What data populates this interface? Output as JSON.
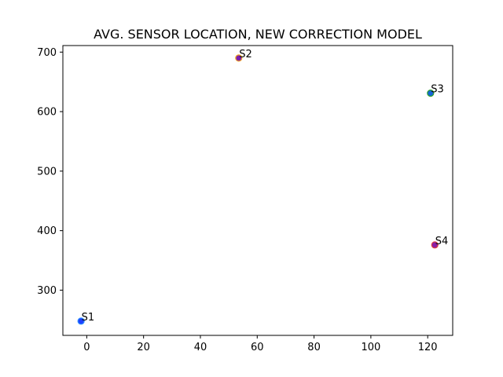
{
  "chart_data": {
    "type": "scatter",
    "title": "AVG. SENSOR LOCATION, NEW CORRECTION MODEL",
    "xlabel": "",
    "ylabel": "",
    "xlim": [
      -8.4,
      128.8
    ],
    "ylim": [
      224,
      711
    ],
    "xticks": [
      0,
      20,
      40,
      60,
      80,
      100,
      120
    ],
    "yticks": [
      300,
      400,
      500,
      600,
      700
    ],
    "grid": false,
    "points": [
      {
        "label": "S1",
        "x": -2,
        "y": 248,
        "fill": "#1f3fff",
        "edge": "#2a8cff"
      },
      {
        "label": "S2",
        "x": 53.5,
        "y": 690,
        "fill": "#7a1fb0",
        "edge": "#f0a020"
      },
      {
        "label": "S3",
        "x": 121,
        "y": 631,
        "fill": "#1565d8",
        "edge": "#2ca02c"
      },
      {
        "label": "S4",
        "x": 122.5,
        "y": 376,
        "fill": "#8a1fa8",
        "edge": "#e04040"
      }
    ]
  }
}
